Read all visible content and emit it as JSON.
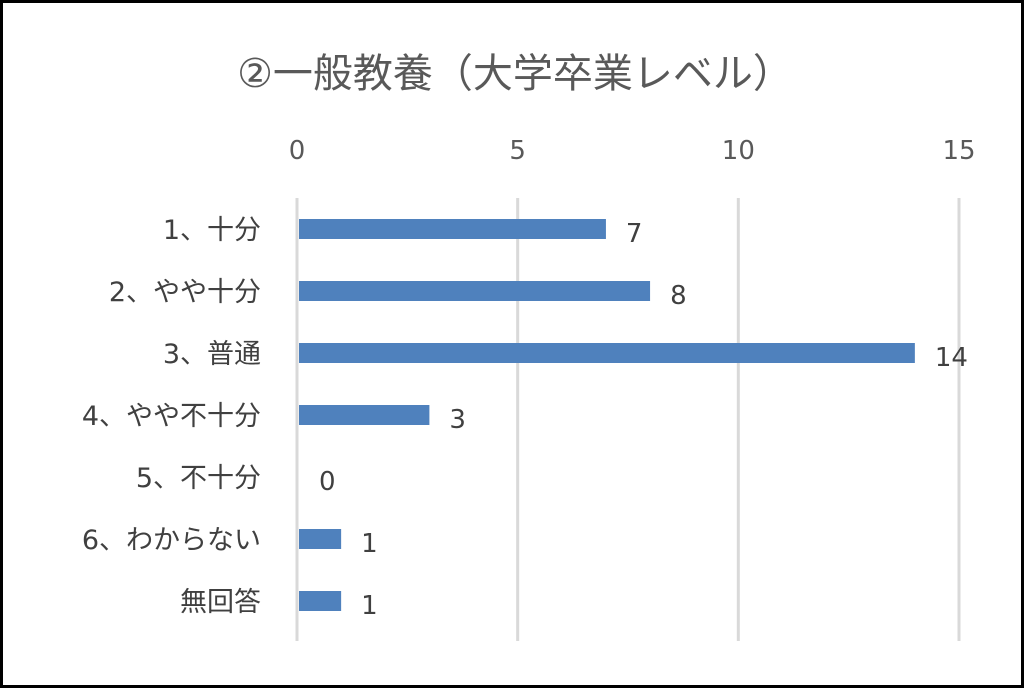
{
  "chart_data": {
    "type": "bar",
    "orientation": "horizontal",
    "title": "②一般教養（大学卒業レベル）",
    "categories": [
      "1、十分",
      "2、やや十分",
      "3、普通",
      "4、やや不十分",
      "5、不十分",
      "6、わからない",
      "無回答"
    ],
    "values": [
      7,
      8,
      14,
      3,
      0,
      1,
      1
    ],
    "xlim": [
      0,
      15
    ],
    "xticks": [
      "0",
      "5",
      "10",
      "15"
    ],
    "x_axis_position": "top",
    "gridlines": true,
    "data_labels": true,
    "legend": "none",
    "colors": {
      "bar": "#4f81bd",
      "grid": "#d9d9d9",
      "border": "#000000"
    }
  }
}
